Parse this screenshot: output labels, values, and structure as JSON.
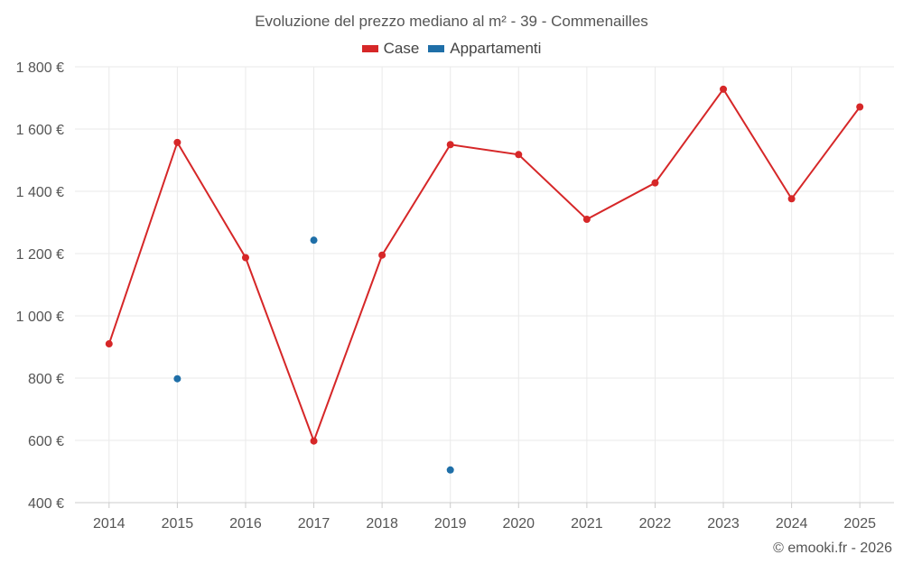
{
  "footer": "© emooki.fr - 2026",
  "chart_data": {
    "type": "line",
    "title": "Evoluzione del prezzo mediano al m² - 39 - Commenailles",
    "xlabel": "",
    "ylabel": "",
    "categories": [
      "2014",
      "2015",
      "2016",
      "2017",
      "2018",
      "2019",
      "2020",
      "2021",
      "2022",
      "2023",
      "2024",
      "2025"
    ],
    "ylim": [
      400,
      1800
    ],
    "yticks": [
      400,
      600,
      800,
      1000,
      1200,
      1400,
      1600,
      1800
    ],
    "ytick_labels": [
      "400 €",
      "600 €",
      "800 €",
      "1 000 €",
      "1 200 €",
      "1 400 €",
      "1 600 €",
      "1 800 €"
    ],
    "grid": true,
    "legend_position": "top-center",
    "series": [
      {
        "name": "Case",
        "color": "#d62728",
        "style": "line",
        "values": [
          910,
          1557,
          1187,
          598,
          1195,
          1550,
          1518,
          1310,
          1427,
          1728,
          1376,
          1671
        ]
      },
      {
        "name": "Appartamenti",
        "color": "#1f6fa8",
        "style": "points",
        "values": [
          null,
          798,
          null,
          1243,
          null,
          505,
          null,
          null,
          null,
          null,
          null,
          null
        ]
      }
    ]
  }
}
